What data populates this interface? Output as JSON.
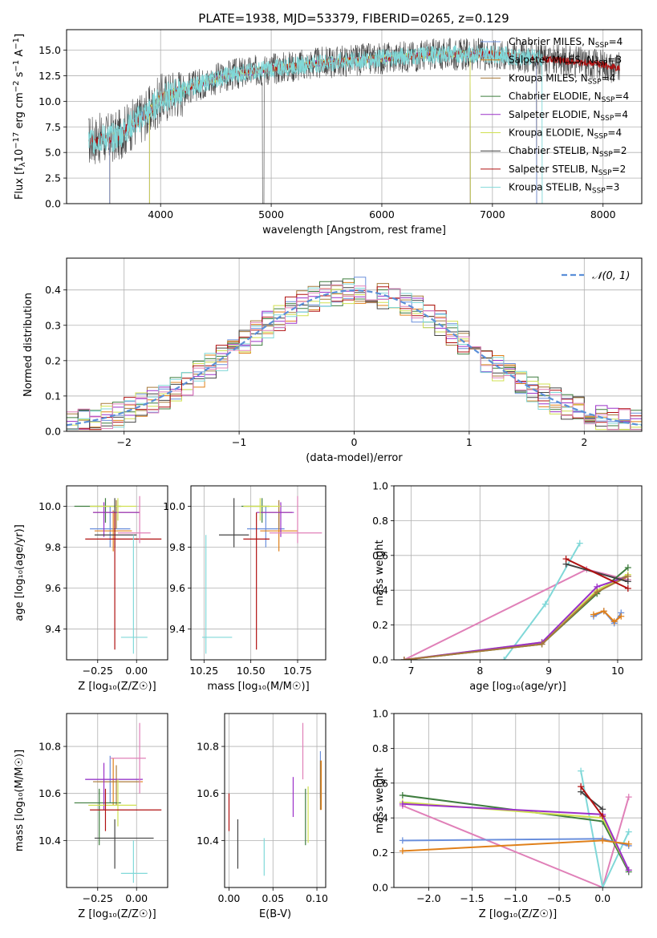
{
  "figure": {
    "title": "PLATE=1938, MJD=53379, FIBERID=0265, z=0.129"
  },
  "colors": {
    "Chabrier MILES": "#6a8fdc",
    "Salpeter MILES": "#e0801a",
    "Kroupa MILES": "#a87a3a",
    "Chabrier ELODIE": "#3e7d3e",
    "Salpeter ELODIE": "#9b30c8",
    "Kroupa ELODIE": "#d0e050",
    "Chabrier STELIB": "#444444",
    "Salpeter STELIB": "#b01010",
    "Kroupa STELIB": "#80d8d8",
    "pink": "#e080b8",
    "gauss": "#5b8fd8"
  },
  "chart_data": [
    {
      "id": "spectrum",
      "type": "line",
      "xlabel": "wavelength [Angstrom, rest frame]",
      "ylabel_main": "Flux [f",
      "ylabel_sub": "λ",
      "ylabel_tail": "10",
      "ylabel_sup1": "−17",
      "ylabel_mid": " erg cm",
      "ylabel_sup2": "−2",
      "ylabel_mid2": " s",
      "ylabel_sup3": "−1",
      "ylabel_mid3": " A",
      "ylabel_sup4": "−1",
      "ylabel_end": "]",
      "xlim": [
        3150,
        8350
      ],
      "ylim": [
        0,
        17
      ],
      "xticks": [
        4000,
        5000,
        6000,
        7000,
        8000
      ],
      "yticks": [
        0.0,
        2.5,
        5.0,
        7.5,
        10.0,
        12.5,
        15.0
      ],
      "ytick_labels": [
        "0.0",
        "2.5",
        "5.0",
        "7.5",
        "10.0",
        "12.5",
        "15.0"
      ],
      "legend": [
        {
          "name": "Chabrier MILES",
          "nssp": "4"
        },
        {
          "name": "Salpeter MILES",
          "nssp": "3"
        },
        {
          "name": "Kroupa MILES",
          "nssp": "4"
        },
        {
          "name": "Chabrier ELODIE",
          "nssp": "4"
        },
        {
          "name": "Salpeter ELODIE",
          "nssp": "4"
        },
        {
          "name": "Kroupa ELODIE",
          "nssp": "4"
        },
        {
          "name": "Chabrier STELIB",
          "nssp": "2"
        },
        {
          "name": "Salpeter STELIB",
          "nssp": "2"
        },
        {
          "name": "Kroupa STELIB",
          "nssp": "3"
        }
      ],
      "legend_placement": "upper-right",
      "continuum": [
        [
          3350,
          6.2
        ],
        [
          3600,
          6.5
        ],
        [
          3750,
          7.8
        ],
        [
          3900,
          9.0
        ],
        [
          4000,
          10.2
        ],
        [
          4300,
          11.5
        ],
        [
          4600,
          12.5
        ],
        [
          5000,
          13.2
        ],
        [
          5500,
          13.8
        ],
        [
          6000,
          14.2
        ],
        [
          6500,
          14.6
        ],
        [
          7000,
          14.6
        ],
        [
          7500,
          14.1
        ],
        [
          8000,
          13.6
        ],
        [
          8150,
          13.2
        ]
      ]
    },
    {
      "id": "residuals",
      "type": "line",
      "xlabel": "(data-model)/error",
      "ylabel": "Normed distribution",
      "xlim": [
        -2.5,
        2.5
      ],
      "ylim": [
        0,
        0.49
      ],
      "xticks": [
        -2,
        -1,
        0,
        1,
        2
      ],
      "xtick_labels": [
        "−2",
        "−1",
        "0",
        "1",
        "2"
      ],
      "yticks": [
        0.0,
        0.1,
        0.2,
        0.3,
        0.4
      ],
      "ytick_labels": [
        "0.0",
        "0.1",
        "0.2",
        "0.3",
        "0.4"
      ],
      "legend": "𝒩(0, 1)",
      "legend_placement": "upper-right",
      "gauss_sigma": 1.0
    },
    {
      "id": "age_vs_Z",
      "type": "scatter",
      "xlabel": "Z [log₁₀(Z/Z☉)]",
      "ylabel": "age  [log₁₀(age/yr)]",
      "xlim": [
        -0.45,
        0.2
      ],
      "ylim": [
        9.25,
        10.1
      ],
      "xticks": [
        -0.25,
        0.0
      ],
      "xtick_labels": [
        "−0.25",
        "0.00"
      ],
      "yticks": [
        9.4,
        9.6,
        9.8,
        10.0
      ],
      "ytick_labels": [
        "9.4",
        "9.6",
        "9.8",
        "10.0"
      ],
      "points": [
        {
          "s": "Chabrier MILES",
          "x": -0.17,
          "y": 9.89,
          "xe": [
            -0.3,
            -0.04
          ],
          "ye": [
            9.8,
            10.0
          ]
        },
        {
          "s": "Salpeter MILES",
          "x": -0.15,
          "y": 9.88,
          "xe": [
            -0.27,
            -0.03
          ],
          "ye": [
            9.78,
            9.98
          ]
        },
        {
          "s": "Kroupa MILES",
          "x": -0.13,
          "y": 9.97,
          "xe": [
            -0.28,
            0.02
          ],
          "ye": [
            9.89,
            10.03
          ]
        },
        {
          "s": "Chabrier ELODIE",
          "x": -0.2,
          "y": 10.0,
          "xe": [
            -0.4,
            -0.1
          ],
          "ye": [
            9.92,
            10.04
          ]
        },
        {
          "s": "Salpeter ELODIE",
          "x": -0.21,
          "y": 9.97,
          "xe": [
            -0.28,
            0.02
          ],
          "ye": [
            9.85,
            10.02
          ]
        },
        {
          "s": "Kroupa ELODIE",
          "x": -0.12,
          "y": 10.0,
          "xe": [
            -0.3,
            0.0
          ],
          "ye": [
            9.93,
            10.04
          ]
        },
        {
          "s": "Chabrier STELIB",
          "x": -0.14,
          "y": 9.86,
          "xe": [
            -0.27,
            0.0
          ],
          "ye": [
            9.8,
            10.04
          ]
        },
        {
          "s": "Salpeter STELIB",
          "x": -0.14,
          "y": 9.84,
          "xe": [
            -0.33,
            0.16
          ],
          "ye": [
            9.3,
            9.97
          ]
        },
        {
          "s": "Kroupa STELIB",
          "x": -0.02,
          "y": 9.36,
          "xe": [
            -0.1,
            0.07
          ],
          "ye": [
            9.28,
            9.86
          ]
        },
        {
          "s": "pink",
          "x": 0.02,
          "y": 9.87,
          "xe": [
            -0.12,
            0.09
          ],
          "ye": [
            9.82,
            10.05
          ]
        }
      ]
    },
    {
      "id": "age_vs_mass",
      "type": "scatter",
      "xlabel": "mass [log₁₀(M/M☉)]",
      "xlim": [
        10.18,
        10.9
      ],
      "ylim": [
        9.25,
        10.1
      ],
      "xticks": [
        10.25,
        10.5,
        10.75
      ],
      "xtick_labels": [
        "10.25",
        "10.50",
        "10.75"
      ],
      "yticks": [
        9.4,
        9.6,
        9.8,
        10.0
      ],
      "ytick_labels": [
        "9.4",
        "9.6",
        "9.8",
        "10.0"
      ],
      "points": [
        {
          "s": "Chabrier MILES",
          "x": 10.58,
          "y": 9.89,
          "xe": [
            10.48,
            10.68
          ],
          "ye": [
            9.8,
            10.0
          ]
        },
        {
          "s": "Salpeter MILES",
          "x": 10.65,
          "y": 9.88,
          "xe": [
            10.55,
            10.75
          ],
          "ye": [
            9.78,
            9.98
          ]
        },
        {
          "s": "Kroupa MILES",
          "x": 10.65,
          "y": 9.97,
          "xe": [
            10.55,
            10.72
          ],
          "ye": [
            9.89,
            10.03
          ]
        },
        {
          "s": "Chabrier ELODIE",
          "x": 10.56,
          "y": 10.0,
          "xe": [
            10.45,
            10.6
          ],
          "ye": [
            9.92,
            10.04
          ]
        },
        {
          "s": "Salpeter ELODIE",
          "x": 10.66,
          "y": 9.97,
          "xe": [
            10.53,
            10.73
          ],
          "ye": [
            9.85,
            10.02
          ]
        },
        {
          "s": "Kroupa ELODIE",
          "x": 10.55,
          "y": 10.0,
          "xe": [
            10.46,
            10.66
          ],
          "ye": [
            9.93,
            10.04
          ]
        },
        {
          "s": "Chabrier STELIB",
          "x": 10.41,
          "y": 9.86,
          "xe": [
            10.33,
            10.49
          ],
          "ye": [
            9.8,
            10.04
          ]
        },
        {
          "s": "Salpeter STELIB",
          "x": 10.53,
          "y": 9.84,
          "xe": [
            10.46,
            10.6
          ],
          "ye": [
            9.3,
            9.97
          ]
        },
        {
          "s": "Kroupa STELIB",
          "x": 10.26,
          "y": 9.36,
          "xe": [
            10.24,
            10.4
          ],
          "ye": [
            9.28,
            9.86
          ]
        },
        {
          "s": "pink",
          "x": 10.75,
          "y": 9.87,
          "xe": [
            10.6,
            10.88
          ],
          "ye": [
            9.82,
            10.05
          ]
        }
      ]
    },
    {
      "id": "massweight_vs_age",
      "type": "line",
      "xlabel": "age  [log₁₀(age/yr)]",
      "ylabel": "mass weight",
      "xlim": [
        6.75,
        10.35
      ],
      "ylim": [
        0,
        1
      ],
      "xticks": [
        7,
        8,
        9,
        10
      ],
      "xtick_labels": [
        "7",
        "8",
        "9",
        "10"
      ],
      "yticks": [
        0.0,
        0.2,
        0.4,
        0.6,
        0.8,
        1.0
      ],
      "ytick_labels": [
        "0.0",
        "0.2",
        "0.4",
        "0.6",
        "0.8",
        "1.0"
      ],
      "series": [
        {
          "s": "pink",
          "x": [
            6.9,
            9.55,
            10.15
          ],
          "y": [
            0.0,
            0.52,
            0.46
          ]
        },
        {
          "s": "Kroupa STELIB",
          "x": [
            8.35,
            8.95,
            9.45
          ],
          "y": [
            0.0,
            0.32,
            0.67
          ]
        },
        {
          "s": "Chabrier ELODIE",
          "x": [
            6.9,
            8.9,
            9.7,
            10.15
          ],
          "y": [
            0.0,
            0.09,
            0.38,
            0.53
          ]
        },
        {
          "s": "Kroupa ELODIE",
          "x": [
            6.9,
            8.9,
            9.7,
            10.15
          ],
          "y": [
            0.0,
            0.1,
            0.4,
            0.49
          ]
        },
        {
          "s": "Salpeter ELODIE",
          "x": [
            6.9,
            8.9,
            9.7,
            10.15
          ],
          "y": [
            0.0,
            0.1,
            0.42,
            0.48
          ]
        },
        {
          "s": "Kroupa MILES",
          "x": [
            6.9,
            8.9,
            9.7,
            10.15
          ],
          "y": [
            0.0,
            0.09,
            0.39,
            0.48
          ]
        },
        {
          "s": "Chabrier STELIB",
          "x": [
            9.25,
            10.15
          ],
          "y": [
            0.55,
            0.45
          ]
        },
        {
          "s": "Salpeter STELIB",
          "x": [
            9.25,
            10.15
          ],
          "y": [
            0.58,
            0.41
          ]
        },
        {
          "s": "Chabrier MILES",
          "x": [
            9.65,
            9.8,
            9.95,
            10.05
          ],
          "y": [
            0.25,
            0.28,
            0.21,
            0.27
          ]
        },
        {
          "s": "Salpeter MILES",
          "x": [
            9.65,
            9.8,
            9.95,
            10.05
          ],
          "y": [
            0.26,
            0.28,
            0.22,
            0.25
          ]
        }
      ]
    },
    {
      "id": "mass_vs_Z",
      "type": "scatter",
      "xlabel": "Z [log₁₀(Z/Z☉)]",
      "ylabel": "mass [log₁₀(M/M☉)]",
      "xlim": [
        -0.45,
        0.2
      ],
      "ylim": [
        10.2,
        10.94
      ],
      "xticks": [
        -0.25,
        0.0
      ],
      "xtick_labels": [
        "−0.25",
        "0.00"
      ],
      "yticks": [
        10.4,
        10.6,
        10.8
      ],
      "ytick_labels": [
        "10.4",
        "10.6",
        "10.8"
      ],
      "points": [
        {
          "s": "Chabrier MILES",
          "x": -0.17,
          "y": 10.66,
          "xe": [
            -0.33,
            0.03
          ],
          "ye": [
            10.56,
            10.76
          ]
        },
        {
          "s": "Salpeter MILES",
          "x": -0.15,
          "y": 10.65,
          "xe": [
            -0.25,
            0.04
          ],
          "ye": [
            10.55,
            10.75
          ]
        },
        {
          "s": "Kroupa MILES",
          "x": -0.13,
          "y": 10.65,
          "xe": [
            -0.28,
            0.02
          ],
          "ye": [
            10.55,
            10.72
          ]
        },
        {
          "s": "Chabrier ELODIE",
          "x": -0.24,
          "y": 10.56,
          "xe": [
            -0.4,
            -0.1
          ],
          "ye": [
            10.38,
            10.62
          ]
        },
        {
          "s": "Salpeter ELODIE",
          "x": -0.21,
          "y": 10.66,
          "xe": [
            -0.33,
            0.04
          ],
          "ye": [
            10.53,
            10.73
          ]
        },
        {
          "s": "Kroupa ELODIE",
          "x": -0.12,
          "y": 10.55,
          "xe": [
            -0.31,
            0.0
          ],
          "ye": [
            10.46,
            10.66
          ]
        },
        {
          "s": "Chabrier STELIB",
          "x": -0.14,
          "y": 10.41,
          "xe": [
            -0.27,
            0.11
          ],
          "ye": [
            10.28,
            10.49
          ]
        },
        {
          "s": "Salpeter STELIB",
          "x": -0.2,
          "y": 10.53,
          "xe": [
            -0.3,
            0.16
          ],
          "ye": [
            10.44,
            10.62
          ]
        },
        {
          "s": "Kroupa STELIB",
          "x": -0.02,
          "y": 10.26,
          "xe": [
            -0.1,
            0.07
          ],
          "ye": [
            10.22,
            10.4
          ]
        },
        {
          "s": "pink",
          "x": 0.02,
          "y": 10.75,
          "xe": [
            -0.17,
            0.06
          ],
          "ye": [
            10.6,
            10.9
          ]
        }
      ]
    },
    {
      "id": "mass_vs_ebv",
      "type": "scatter",
      "xlabel": "E(B-V)",
      "xlim": [
        -0.005,
        0.11
      ],
      "ylim": [
        10.2,
        10.94
      ],
      "xticks": [
        0.0,
        0.05,
        0.1
      ],
      "xtick_labels": [
        "0.00",
        "0.05",
        "0.10"
      ],
      "yticks": [
        10.4,
        10.6,
        10.8
      ],
      "ytick_labels": [
        "10.4",
        "10.6",
        "10.8"
      ],
      "points": [
        {
          "s": "Chabrier MILES",
          "x": 0.104,
          "y": 10.68,
          "ye": [
            10.58,
            10.78
          ]
        },
        {
          "s": "Salpeter MILES",
          "x": 0.105,
          "y": 10.63,
          "ye": [
            10.53,
            10.74
          ]
        },
        {
          "s": "Kroupa MILES",
          "x": 0.104,
          "y": 10.63,
          "ye": [
            10.53,
            10.74
          ]
        },
        {
          "s": "Chabrier ELODIE",
          "x": 0.087,
          "y": 10.49,
          "ye": [
            10.38,
            10.62
          ]
        },
        {
          "s": "Salpeter ELODIE",
          "x": 0.073,
          "y": 10.58,
          "ye": [
            10.5,
            10.67
          ]
        },
        {
          "s": "Kroupa ELODIE",
          "x": 0.09,
          "y": 10.5,
          "ye": [
            10.39,
            10.63
          ]
        },
        {
          "s": "Chabrier STELIB",
          "x": 0.01,
          "y": 10.38,
          "ye": [
            10.28,
            10.49
          ]
        },
        {
          "s": "Salpeter STELIB",
          "x": 0.0,
          "y": 10.52,
          "ye": [
            10.44,
            10.6
          ]
        },
        {
          "s": "Kroupa STELIB",
          "x": 0.04,
          "y": 10.33,
          "ye": [
            10.25,
            10.41
          ]
        },
        {
          "s": "pink",
          "x": 0.084,
          "y": 10.78,
          "ye": [
            10.66,
            10.9
          ]
        }
      ]
    },
    {
      "id": "massweight_vs_Z",
      "type": "line",
      "xlabel": "Z [log₁₀(Z/Z☉)]",
      "ylabel": "mass weight",
      "xlim": [
        -2.4,
        0.45
      ],
      "ylim": [
        0,
        1
      ],
      "xticks": [
        -2.0,
        -1.5,
        -1.0,
        -0.5,
        0.0
      ],
      "xtick_labels": [
        "−2.0",
        "−1.5",
        "−1.0",
        "−0.5",
        "0.0"
      ],
      "yticks": [
        0.0,
        0.2,
        0.4,
        0.6,
        0.8,
        1.0
      ],
      "ytick_labels": [
        "0.0",
        "0.2",
        "0.4",
        "0.6",
        "0.8",
        "1.0"
      ],
      "series": [
        {
          "s": "pink",
          "x": [
            -2.3,
            0.0,
            0.3
          ],
          "y": [
            0.47,
            0.0,
            0.52
          ]
        },
        {
          "s": "Kroupa STELIB",
          "x": [
            -0.25,
            0.0,
            0.3
          ],
          "y": [
            0.67,
            0.0,
            0.32
          ]
        },
        {
          "s": "Chabrier ELODIE",
          "x": [
            -2.3,
            0.0,
            0.3
          ],
          "y": [
            0.53,
            0.38,
            0.09
          ]
        },
        {
          "s": "Kroupa ELODIE",
          "x": [
            -2.3,
            0.0,
            0.3
          ],
          "y": [
            0.49,
            0.4,
            0.1
          ]
        },
        {
          "s": "Salpeter ELODIE",
          "x": [
            -2.3,
            0.0,
            0.3
          ],
          "y": [
            0.48,
            0.42,
            0.1
          ]
        },
        {
          "s": "Chabrier STELIB",
          "x": [
            -0.25,
            0.0
          ],
          "y": [
            0.55,
            0.45
          ]
        },
        {
          "s": "Salpeter STELIB",
          "x": [
            -0.25,
            0.0
          ],
          "y": [
            0.58,
            0.41
          ]
        },
        {
          "s": "Chabrier MILES",
          "x": [
            -2.3,
            0.0,
            0.3
          ],
          "y": [
            0.27,
            0.28,
            0.24
          ]
        },
        {
          "s": "Salpeter MILES",
          "x": [
            -2.3,
            0.0,
            0.3
          ],
          "y": [
            0.21,
            0.27,
            0.25
          ]
        }
      ]
    }
  ]
}
